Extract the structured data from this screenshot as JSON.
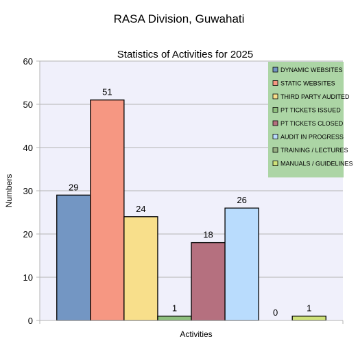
{
  "page": {
    "title": "RASA Division, Guwahati"
  },
  "chart_data": {
    "type": "bar",
    "title": "Statistics of Activities for 2025",
    "xlabel": "Activities",
    "ylabel": "Numbers",
    "ylim": [
      0,
      60
    ],
    "yticks": [
      0,
      10,
      20,
      30,
      40,
      50,
      60
    ],
    "grid": true,
    "legend_position": "top-right",
    "series": [
      {
        "name": "DYNAMIC WEBSITES",
        "value": 29,
        "color": "#7396c3"
      },
      {
        "name": "STATIC WEBSITES",
        "value": 51,
        "color": "#f69782"
      },
      {
        "name": "THIRD PARTY AUDITED",
        "value": 24,
        "color": "#f8df8b"
      },
      {
        "name": "PT TICKETS ISSUED",
        "value": 1,
        "color": "#8fc07e"
      },
      {
        "name": "PT TICKETS CLOSED",
        "value": 18,
        "color": "#b5707f"
      },
      {
        "name": "AUDIT IN PROGRESS",
        "value": 26,
        "color": "#b9dcfd"
      },
      {
        "name": "TRAINING / LECTURES",
        "value": 0,
        "color": "#97b184"
      },
      {
        "name": "MANUALS / GUIDELINES",
        "value": 1,
        "color": "#cfe27a"
      }
    ],
    "colors": {
      "plot_background": "#f0f0fb",
      "legend_background": "#acd5a5",
      "grid": "#b3b3b3"
    }
  }
}
